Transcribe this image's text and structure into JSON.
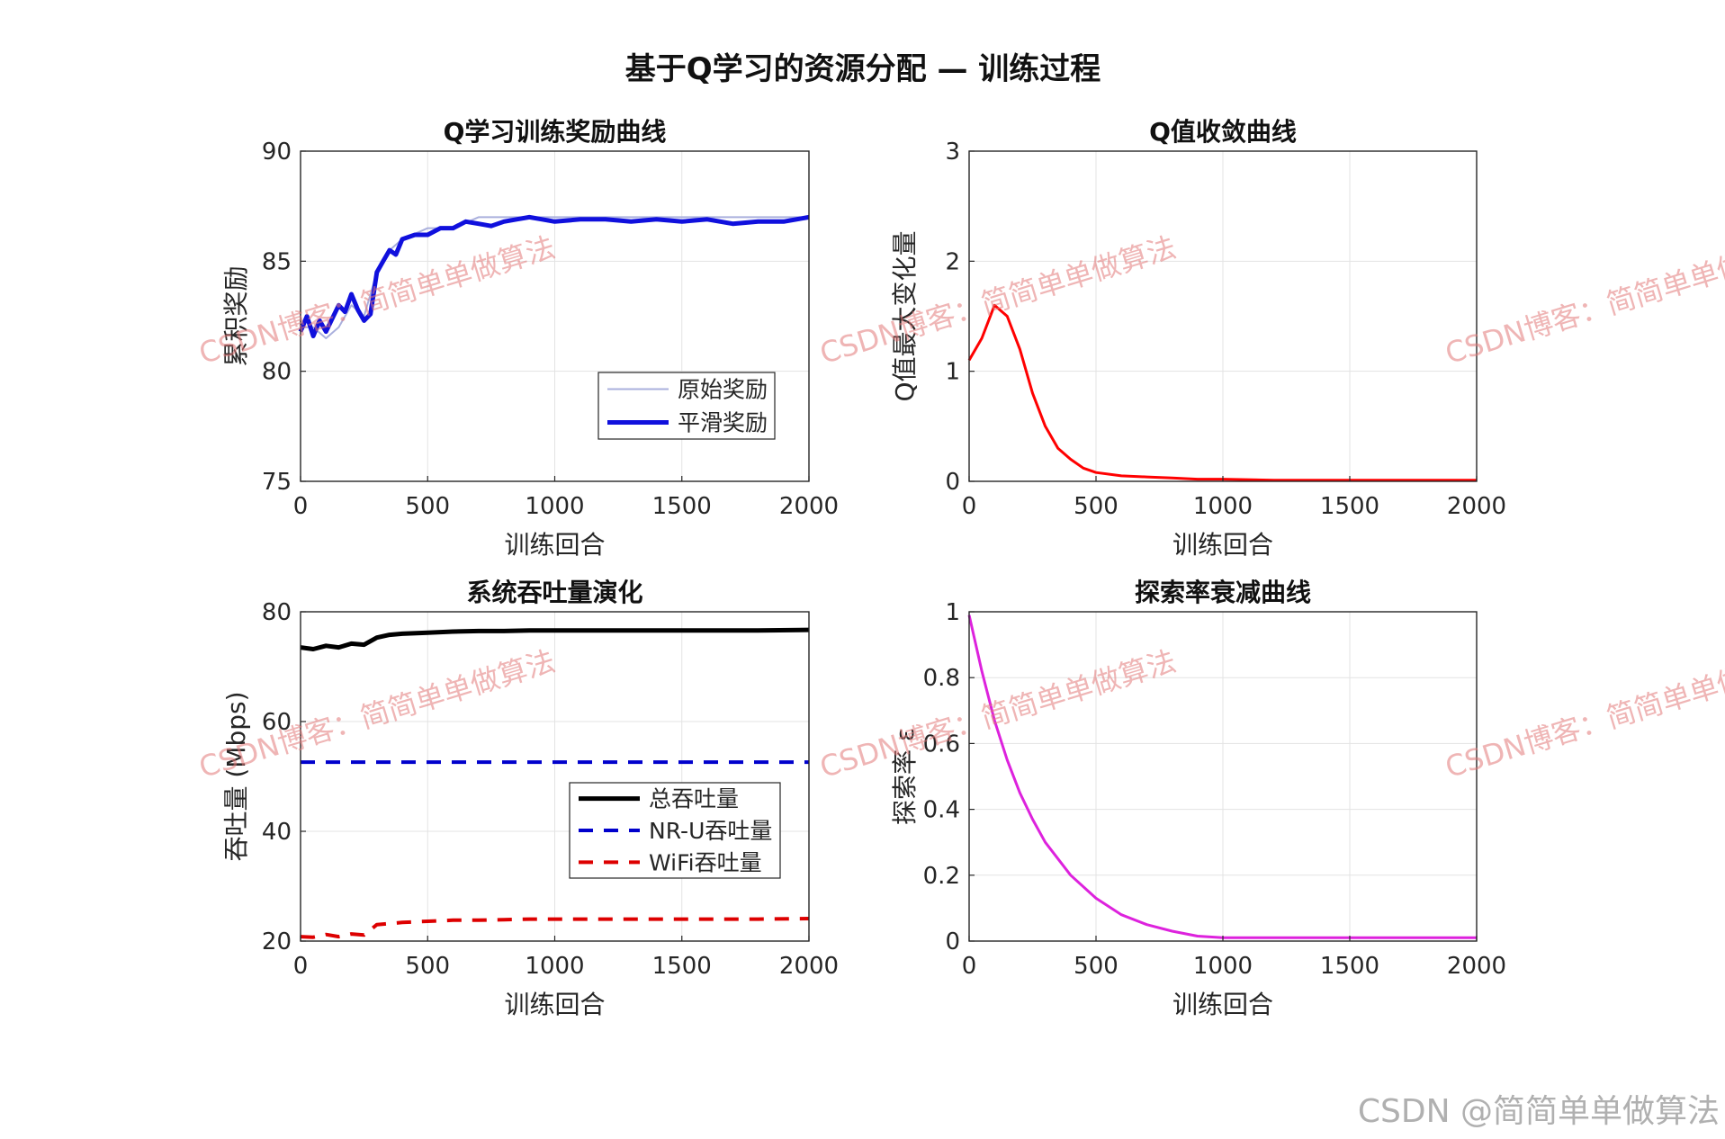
{
  "figure": {
    "suptitle": "基于Q学习的资源分配 — 训练过程",
    "footer": "CSDN @简简单单做算法",
    "watermark": "CSDN博客：简简单单做算法"
  },
  "chart_data": [
    {
      "type": "line",
      "title": "Q学习训练奖励曲线",
      "xlabel": "训练回合",
      "ylabel": "累积奖励",
      "xlim": [
        0,
        2000
      ],
      "ylim": [
        75,
        90
      ],
      "xticks": [
        0,
        500,
        1000,
        1500,
        2000
      ],
      "yticks": [
        75,
        80,
        85,
        90
      ],
      "grid": true,
      "legend_position": "lower-right",
      "series": [
        {
          "name": "原始奖励",
          "color": "#aab0dd",
          "style": "thin",
          "x": [
            0,
            50,
            100,
            150,
            200,
            250,
            300,
            350,
            400,
            500,
            600,
            700,
            800,
            900,
            1000,
            1200,
            1400,
            1600,
            1800,
            2000
          ],
          "y": [
            82,
            82,
            81.5,
            82,
            83,
            82.5,
            84.5,
            85.5,
            86,
            86.5,
            86.5,
            87,
            87,
            87,
            87,
            87,
            87,
            87,
            87,
            87
          ]
        },
        {
          "name": "平滑奖励",
          "color": "#1010dd",
          "style": "thick",
          "x": [
            0,
            25,
            50,
            75,
            100,
            125,
            150,
            175,
            200,
            225,
            250,
            275,
            300,
            325,
            350,
            375,
            400,
            450,
            500,
            550,
            600,
            650,
            700,
            750,
            800,
            850,
            900,
            950,
            1000,
            1100,
            1200,
            1300,
            1400,
            1500,
            1600,
            1700,
            1800,
            1900,
            2000
          ],
          "y": [
            81.8,
            82.5,
            81.6,
            82.3,
            81.8,
            82.4,
            83.0,
            82.7,
            83.5,
            82.8,
            82.3,
            82.6,
            84.5,
            85.0,
            85.5,
            85.3,
            86.0,
            86.2,
            86.2,
            86.5,
            86.5,
            86.8,
            86.7,
            86.6,
            86.8,
            86.9,
            87.0,
            86.9,
            86.8,
            86.9,
            86.9,
            86.8,
            86.9,
            86.8,
            86.9,
            86.7,
            86.8,
            86.8,
            87.0
          ]
        }
      ]
    },
    {
      "type": "line",
      "title": "Q值收敛曲线",
      "xlabel": "训练回合",
      "ylabel": "Q值最大变化量",
      "xlim": [
        0,
        2000
      ],
      "ylim": [
        0,
        3
      ],
      "xticks": [
        0,
        500,
        1000,
        1500,
        2000
      ],
      "yticks": [
        0,
        1,
        2,
        3
      ],
      "grid": true,
      "series": [
        {
          "color": "#ff0000",
          "x": [
            0,
            50,
            100,
            150,
            200,
            250,
            300,
            350,
            400,
            450,
            500,
            600,
            700,
            800,
            900,
            1000,
            1200,
            1400,
            1600,
            1800,
            2000
          ],
          "y": [
            1.1,
            1.3,
            1.6,
            1.5,
            1.2,
            0.8,
            0.5,
            0.3,
            0.2,
            0.12,
            0.08,
            0.05,
            0.04,
            0.03,
            0.02,
            0.02,
            0.01,
            0.01,
            0.01,
            0.01,
            0.01
          ]
        }
      ]
    },
    {
      "type": "line",
      "title": "系统吞吐量演化",
      "xlabel": "训练回合",
      "ylabel": "吞吐量 (Mbps)",
      "xlim": [
        0,
        2000
      ],
      "ylim": [
        20,
        80
      ],
      "xticks": [
        0,
        500,
        1000,
        1500,
        2000
      ],
      "yticks": [
        20,
        40,
        60,
        80
      ],
      "grid": true,
      "legend_position": "lower-right",
      "series": [
        {
          "name": "总吞吐量",
          "color": "#000000",
          "dash": "solid",
          "x": [
            0,
            50,
            100,
            150,
            200,
            250,
            300,
            350,
            400,
            500,
            600,
            700,
            800,
            900,
            1000,
            1200,
            1400,
            1600,
            1800,
            2000
          ],
          "y": [
            73.5,
            73.2,
            73.8,
            73.5,
            74.2,
            74.0,
            75.3,
            75.8,
            76.0,
            76.2,
            76.4,
            76.5,
            76.5,
            76.6,
            76.6,
            76.6,
            76.6,
            76.6,
            76.6,
            76.7
          ]
        },
        {
          "name": "NR-U吞吐量",
          "color": "#0000cc",
          "dash": "dashed",
          "x": [
            0,
            2000
          ],
          "y": [
            52.6,
            52.6
          ]
        },
        {
          "name": "WiFi吞吐量",
          "color": "#dd0000",
          "dash": "dashed",
          "x": [
            0,
            50,
            100,
            150,
            200,
            250,
            300,
            350,
            400,
            500,
            600,
            700,
            800,
            900,
            1000,
            1200,
            1400,
            1600,
            1800,
            2000
          ],
          "y": [
            20.8,
            20.7,
            21.2,
            20.8,
            21.3,
            21.1,
            23.0,
            23.2,
            23.4,
            23.6,
            23.8,
            23.8,
            23.9,
            24.0,
            24.0,
            24.0,
            24.0,
            24.0,
            24.0,
            24.1
          ]
        }
      ]
    },
    {
      "type": "line",
      "title": "探索率衰减曲线",
      "xlabel": "训练回合",
      "ylabel": "探索率 ε",
      "xlim": [
        0,
        2000
      ],
      "ylim": [
        0,
        1
      ],
      "xticks": [
        0,
        500,
        1000,
        1500,
        2000
      ],
      "yticks": [
        0,
        0.2,
        0.4,
        0.6,
        0.8,
        1
      ],
      "grid": true,
      "series": [
        {
          "color": "#dd22dd",
          "x": [
            0,
            50,
            100,
            150,
            200,
            250,
            300,
            400,
            500,
            600,
            700,
            800,
            900,
            1000,
            1500,
            2000
          ],
          "y": [
            0.99,
            0.82,
            0.67,
            0.55,
            0.45,
            0.37,
            0.3,
            0.2,
            0.13,
            0.08,
            0.05,
            0.03,
            0.015,
            0.01,
            0.01,
            0.01
          ]
        }
      ]
    }
  ]
}
